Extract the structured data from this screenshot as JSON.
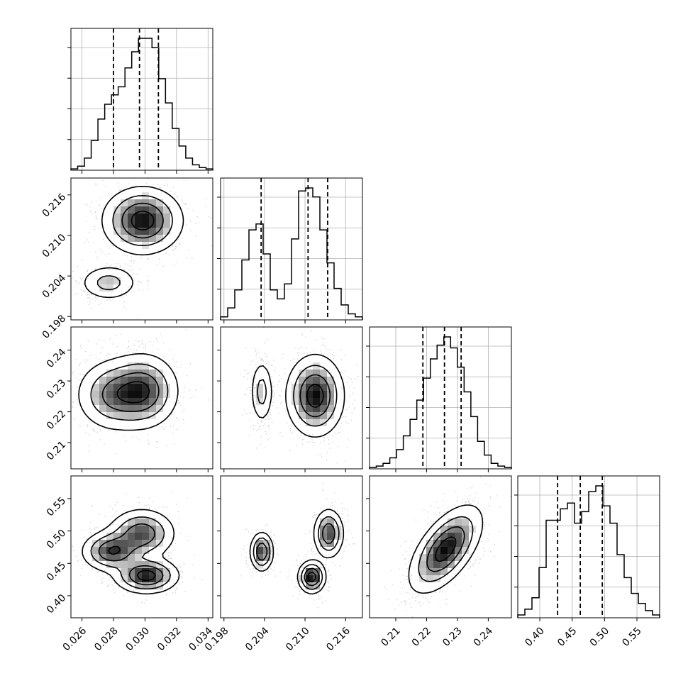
{
  "chart_data": {
    "type": "corner",
    "parameters": [
      {
        "index": 0,
        "range": [
          0.0253,
          0.0343
        ],
        "ticks": [
          "0.026",
          "0.028",
          "0.030",
          "0.032",
          "0.034"
        ],
        "quantiles": [
          0.028,
          0.02965,
          0.03085
        ]
      },
      {
        "index": 1,
        "range": [
          0.1975,
          0.2185
        ],
        "ticks": [
          "0.198",
          "0.204",
          "0.210",
          "0.216"
        ],
        "quantiles": [
          0.2035,
          0.21045,
          0.21335
        ]
      },
      {
        "index": 2,
        "range": [
          0.2015,
          0.2475
        ],
        "ticks": [
          "0.21",
          "0.22",
          "0.23",
          "0.24"
        ],
        "quantiles": [
          0.2188,
          0.2258,
          0.2312
        ]
      },
      {
        "index": 3,
        "range": [
          0.366,
          0.585
        ],
        "ticks": [
          "0.40",
          "0.45",
          "0.50",
          "0.55"
        ],
        "quantiles": [
          0.4275,
          0.4625,
          0.4965
        ]
      }
    ],
    "histograms": [
      {
        "param": 0,
        "counts": [
          1,
          3,
          9,
          22,
          38,
          49,
          56,
          62,
          76,
          88,
          98,
          98,
          91,
          68,
          50,
          31,
          18,
          9,
          4,
          2,
          1
        ]
      },
      {
        "param": 1,
        "counts": [
          2,
          8,
          20,
          40,
          60,
          64,
          44,
          20,
          14,
          24,
          54,
          86,
          88,
          82,
          60,
          38,
          21,
          10,
          4,
          2
        ]
      },
      {
        "param": 2,
        "counts": [
          1,
          2,
          4,
          8,
          14,
          24,
          36,
          50,
          66,
          80,
          90,
          96,
          88,
          74,
          56,
          38,
          20,
          10,
          4,
          2,
          1
        ]
      },
      {
        "param": 3,
        "counts": [
          2,
          6,
          14,
          35,
          68,
          68,
          76,
          80,
          66,
          74,
          88,
          92,
          78,
          66,
          44,
          28,
          17,
          10,
          5,
          2
        ]
      }
    ],
    "pairs": [
      {
        "x": 0,
        "y": 1,
        "modes": [
          {
            "cx": 0.02985,
            "cy": 0.2122,
            "sx": 0.00125,
            "sy": 0.00245,
            "w": 0.7
          },
          {
            "cx": 0.0277,
            "cy": 0.203,
            "sx": 0.00095,
            "sy": 0.00135,
            "w": 0.3
          }
        ]
      },
      {
        "x": 0,
        "y": 2,
        "modes": [
          {
            "cx": 0.02995,
            "cy": 0.2268,
            "sx": 0.0011,
            "sy": 0.006,
            "w": 0.55
          },
          {
            "cx": 0.028,
            "cy": 0.2255,
            "sx": 0.0012,
            "sy": 0.0058,
            "w": 0.45
          }
        ]
      },
      {
        "x": 1,
        "y": 2,
        "modes": [
          {
            "cx": 0.2115,
            "cy": 0.2252,
            "sx": 0.0021,
            "sy": 0.0065,
            "w": 0.7
          },
          {
            "cx": 0.2036,
            "cy": 0.2265,
            "sx": 0.00085,
            "sy": 0.0053,
            "w": 0.3
          }
        ]
      },
      {
        "x": 0,
        "y": 3,
        "modes": [
          {
            "cx": 0.0301,
            "cy": 0.431,
            "sx": 0.001,
            "sy": 0.0135,
            "w": 0.38
          },
          {
            "cx": 0.0279,
            "cy": 0.4685,
            "sx": 0.00095,
            "sy": 0.0155,
            "w": 0.32
          },
          {
            "cx": 0.0298,
            "cy": 0.496,
            "sx": 0.00105,
            "sy": 0.019,
            "w": 0.3
          }
        ]
      },
      {
        "x": 1,
        "y": 3,
        "modes": [
          {
            "cx": 0.211,
            "cy": 0.429,
            "sx": 0.001,
            "sy": 0.0125,
            "w": 0.38
          },
          {
            "cx": 0.2036,
            "cy": 0.468,
            "sx": 0.00085,
            "sy": 0.015,
            "w": 0.32
          },
          {
            "cx": 0.2135,
            "cy": 0.496,
            "sx": 0.0011,
            "sy": 0.019,
            "w": 0.3
          }
        ]
      },
      {
        "x": 2,
        "y": 3,
        "modes": [
          {
            "cx": 0.2262,
            "cy": 0.472,
            "sx": 0.0058,
            "sy": 0.033,
            "rho": 0.6,
            "w": 1.0
          }
        ]
      }
    ],
    "grid": true,
    "quantile_line_style": "dashed"
  }
}
